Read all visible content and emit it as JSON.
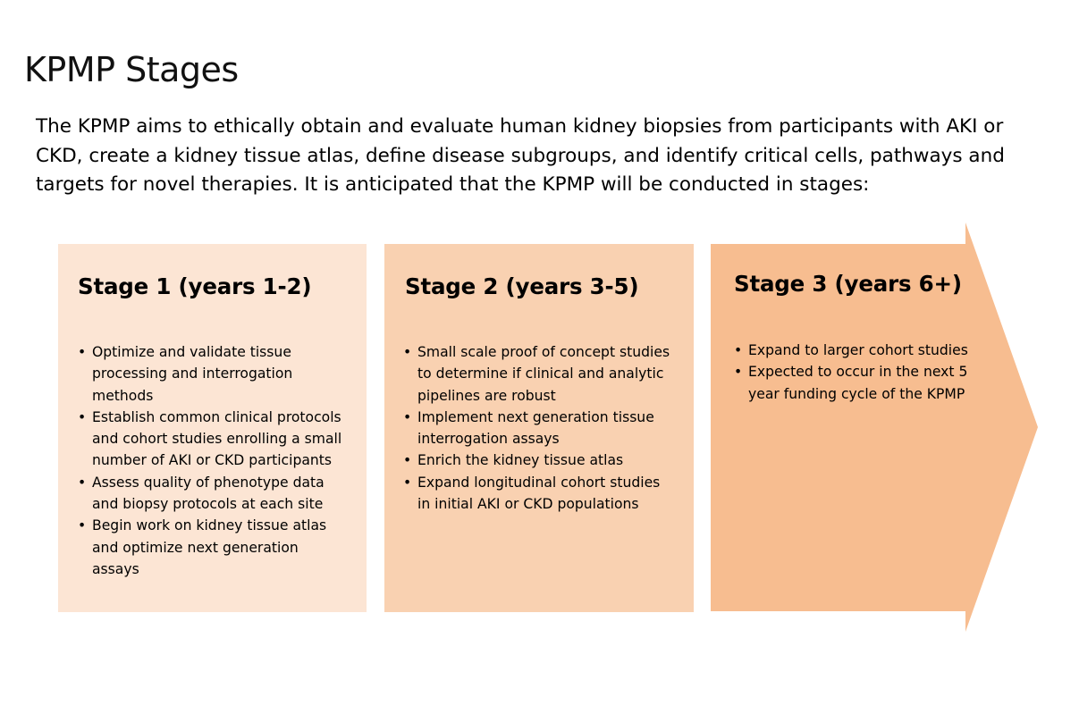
{
  "page": {
    "title": "KPMP Stages",
    "intro": "The KPMP aims to ethically obtain and evaluate human kidney biopsies from participants with AKI or CKD, create a kidney tissue atlas, define disease subgroups, and identify critical cells, pathways and targets for novel therapies. It is anticipated that the KPMP will be conducted in stages:"
  },
  "stages": [
    {
      "heading": "Stage 1 (years 1-2)",
      "color": "#fce5d4",
      "bullets": [
        "Optimize and validate tissue processing and interrogation methods",
        "Establish common clinical protocols and cohort studies enrolling a small number of AKI or CKD participants",
        "Assess quality of phenotype data and biopsy protocols at each site",
        "Begin work on kidney tissue atlas and optimize next generation assays"
      ]
    },
    {
      "heading": "Stage 2 (years 3-5)",
      "color": "#f9d1b1",
      "bullets": [
        "Small scale proof of concept studies to determine if clinical and analytic pipelines are robust",
        "Implement next generation tissue interrogation assays",
        "Enrich the kidney tissue atlas",
        "Expand longitudinal cohort studies in initial AKI or CKD populations"
      ]
    },
    {
      "heading": "Stage 3 (years 6+)",
      "color": "#f7bd90",
      "bullets": [
        "Expand to larger cohort studies",
        "Expected to occur in the next 5 year funding cycle of the KPMP"
      ]
    }
  ],
  "bullet_glyph": "•"
}
